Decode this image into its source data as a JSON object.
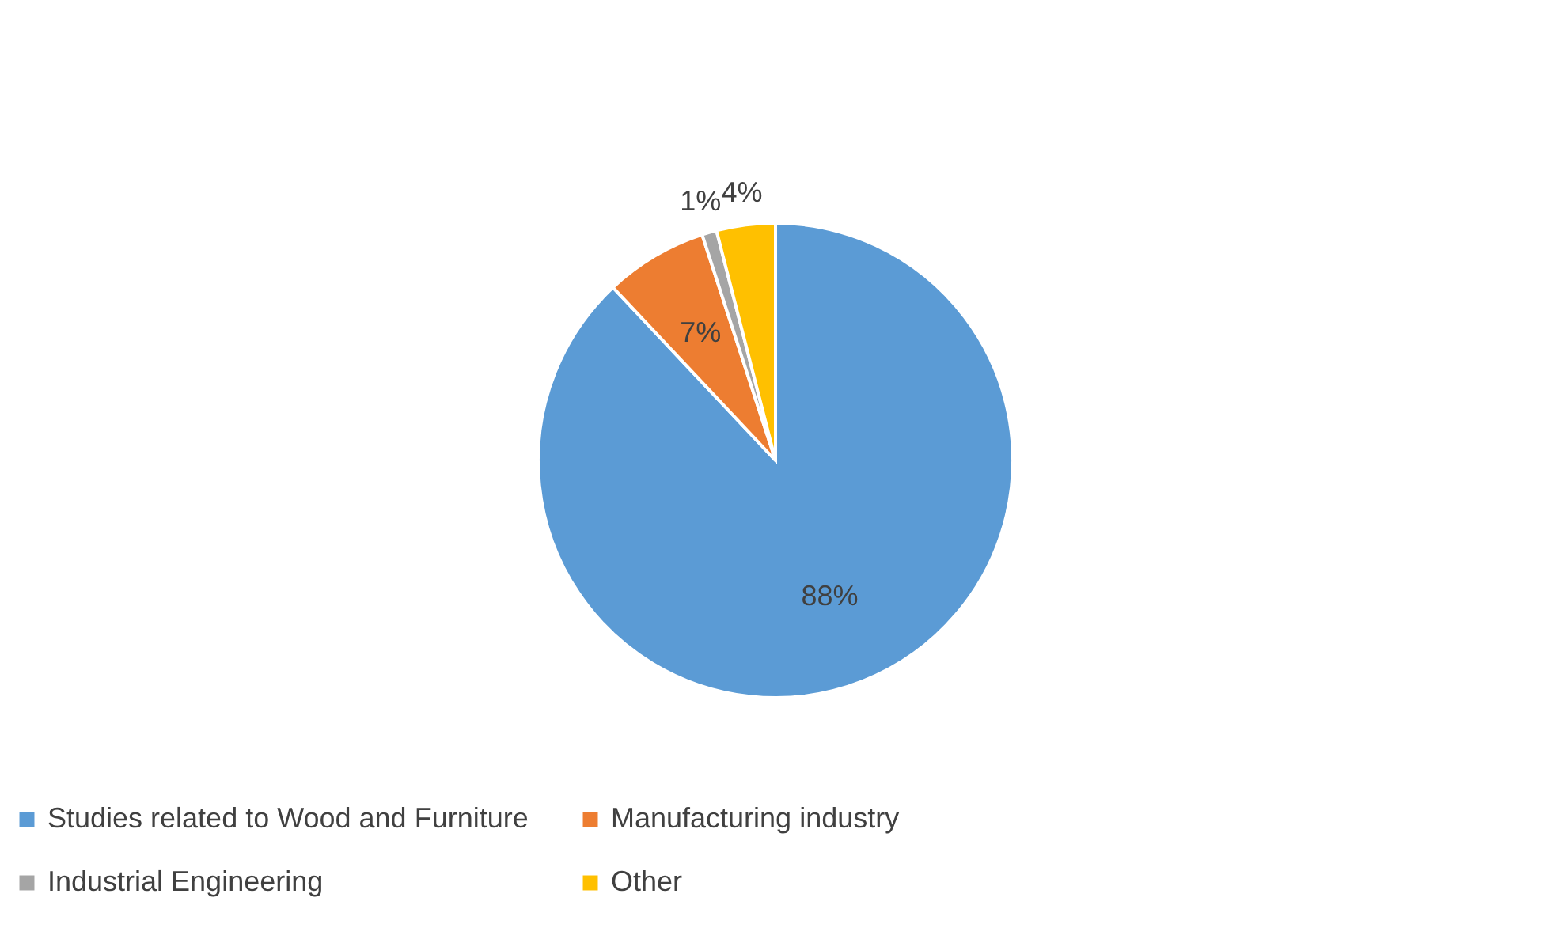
{
  "chart_data": {
    "type": "pie",
    "categories": [
      "Studies related to Wood and Furniture",
      "Manufacturing industry",
      "Industrial Engineering",
      "Other"
    ],
    "values": [
      88,
      7,
      1,
      4
    ],
    "colors": [
      "#5b9bd5",
      "#ed7d31",
      "#a5a5a5",
      "#ffc000"
    ],
    "value_labels": [
      "88%",
      "7%",
      "1%",
      "4%"
    ],
    "legend": "bottom"
  }
}
